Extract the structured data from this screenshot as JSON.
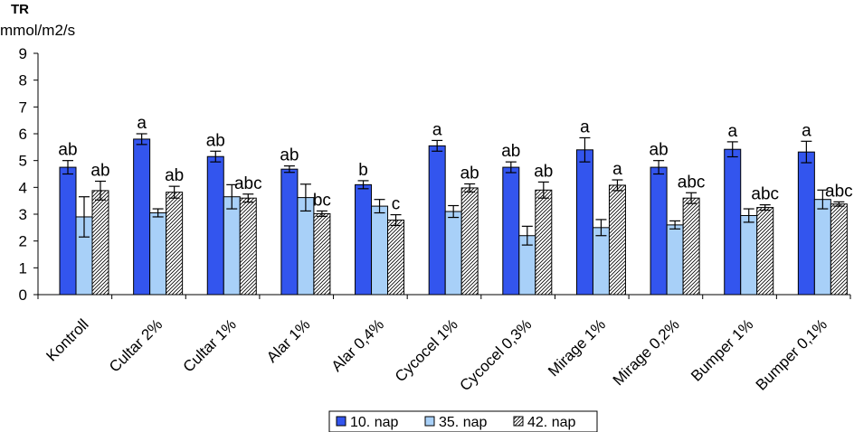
{
  "chart_data": {
    "type": "bar",
    "title": "TR",
    "ylabel": "mmol/m2/s",
    "xlabel": "",
    "ylim": [
      0,
      9
    ],
    "yticks": [
      0,
      1,
      2,
      3,
      4,
      5,
      6,
      7,
      8,
      9
    ],
    "grid": false,
    "legend_position": "bottom",
    "categories": [
      "Kontroll",
      "Cultar 2%",
      "Cultar 1%",
      "Alar 1%",
      "Alar 0,4%",
      "Cycocel 1%",
      "Cycocel 0,3%",
      "Mirage 1%",
      "Mirage 0,2%",
      "Bumper 1%",
      "Bumper 0,1%"
    ],
    "series": [
      {
        "name": "10. nap",
        "color": "#3355ee",
        "pattern": "solid",
        "values": [
          4.75,
          5.8,
          5.15,
          4.68,
          4.1,
          5.55,
          4.75,
          5.4,
          4.75,
          5.42,
          5.32
        ],
        "errors": [
          0.25,
          0.2,
          0.2,
          0.12,
          0.15,
          0.2,
          0.2,
          0.45,
          0.25,
          0.28,
          0.4
        ],
        "labels": [
          "ab",
          "a",
          "ab",
          "ab",
          "b",
          "a",
          "ab",
          "a",
          "ab",
          "a",
          "a"
        ]
      },
      {
        "name": "35. nap",
        "color": "#a8d0f8",
        "pattern": "solid",
        "values": [
          2.9,
          3.05,
          3.65,
          3.62,
          3.3,
          3.1,
          2.2,
          2.5,
          2.6,
          2.95,
          3.55
        ],
        "errors": [
          0.75,
          0.15,
          0.45,
          0.5,
          0.25,
          0.22,
          0.35,
          0.3,
          0.15,
          0.25,
          0.35
        ],
        "labels": [
          "",
          "",
          "",
          "",
          "",
          "",
          "",
          "",
          "",
          "",
          ""
        ]
      },
      {
        "name": "42. nap",
        "color": "#ffffff",
        "pattern": "hatch",
        "values": [
          3.88,
          3.82,
          3.6,
          3.02,
          2.78,
          3.98,
          3.9,
          4.08,
          3.6,
          3.25,
          3.38
        ],
        "errors": [
          0.35,
          0.22,
          0.15,
          0.1,
          0.2,
          0.15,
          0.3,
          0.2,
          0.2,
          0.1,
          0.08
        ],
        "labels": [
          "ab",
          "ab",
          "abc",
          "bc",
          "c",
          "ab",
          "ab",
          "a",
          "abc",
          "abc",
          "abc"
        ]
      }
    ]
  }
}
